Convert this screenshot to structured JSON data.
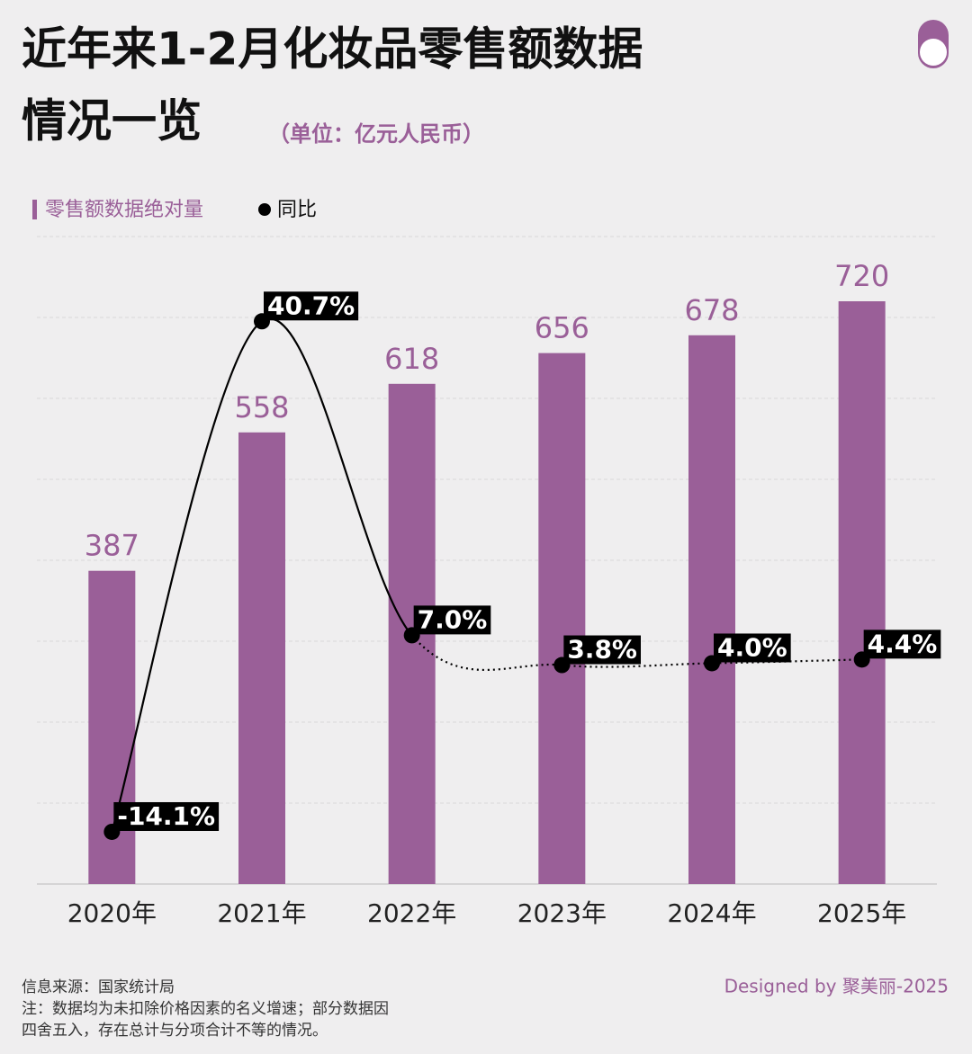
{
  "chart_data": {
    "type": "bar-line",
    "title": "近年来1-2月化妆品零售额数据",
    "title_line2": "情况一览",
    "subtitle": "（单位：亿元人民币）",
    "categories": [
      "2020年",
      "2021年",
      "2022年",
      "2023年",
      "2024年",
      "2025年"
    ],
    "series": [
      {
        "name": "零售额数据绝对量",
        "type": "bar",
        "color": "#9a5f98",
        "values": [
          387,
          558,
          618,
          656,
          678,
          720
        ]
      },
      {
        "name": "同比",
        "type": "line",
        "axis": "y2",
        "color": "#000000",
        "values": [
          -14.1,
          40.7,
          7.0,
          3.8,
          4.0,
          4.4
        ],
        "value_labels": [
          "-14.1%",
          "40.7%",
          "7.0%",
          "3.8%",
          "4.0%",
          "4.4%"
        ]
      }
    ],
    "ylim": [
      0,
      800
    ],
    "yticks": [
      0,
      100,
      200,
      300,
      400,
      500,
      600,
      700,
      800
    ],
    "y2lim": [
      -19.7,
      49.8
    ],
    "grid": true,
    "source": "信息来源：国家统计局",
    "note_line1": "注：数据均为未扣除价格因素的名义增速；部分数据因",
    "note_line2": "四舍五入，存在总计与分项合计不等的情况。",
    "credit": "Designed by 聚美丽-2025"
  }
}
